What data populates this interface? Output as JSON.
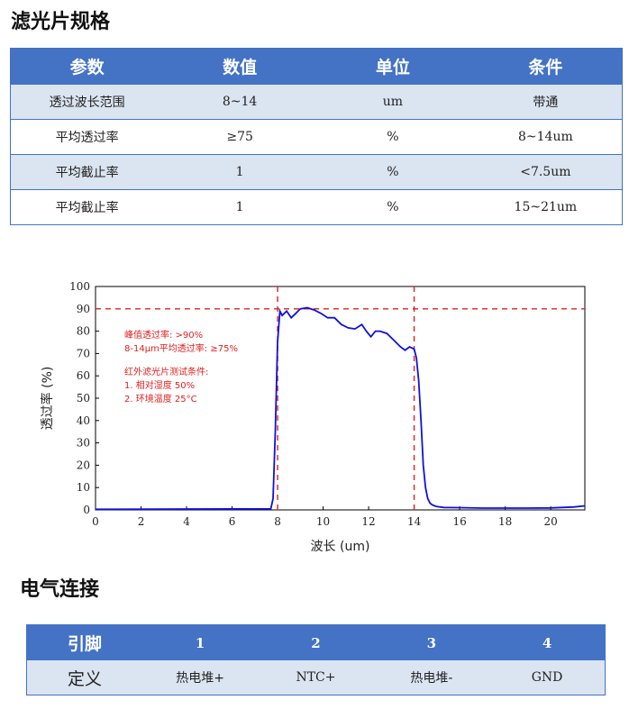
{
  "filter_title": "滤光片规格",
  "spec_table": {
    "headers": [
      "参数",
      "数值",
      "单位",
      "条件"
    ],
    "rows": [
      [
        "透过波长范围",
        "8~14",
        "um",
        "带通"
      ],
      [
        "平均透过率",
        "≥75",
        "%",
        "8~14um"
      ],
      [
        "平均截止率",
        "1",
        "%",
        "<7.5um"
      ],
      [
        "平均截止率",
        "1",
        "%",
        "15~21um"
      ]
    ]
  },
  "chart_data": {
    "type": "line",
    "title": "",
    "xlabel": "波长 (um)",
    "ylabel": "透过率 (%)",
    "xlim": [
      0,
      21.5
    ],
    "ylim": [
      0,
      100
    ],
    "x_ticks": [
      "0",
      "2",
      "4",
      "6",
      "8",
      "10",
      "12",
      "14",
      "16",
      "18",
      "20"
    ],
    "y_ticks": [
      "0",
      "10",
      "20",
      "30",
      "40",
      "50",
      "60",
      "70",
      "80",
      "90",
      "100"
    ],
    "reference_lines": {
      "horizontal": [
        90
      ],
      "vertical": [
        8,
        14
      ]
    },
    "annotations": [
      "峰值透过率: >90%",
      "8-14μm平均透过率: ≥75%",
      "红外滤光片测试条件:",
      "1. 相对湿度 50%",
      "2. 环境温度 25°C"
    ],
    "series": [
      {
        "color": "#1010e0",
        "x": [
          0,
          7.7,
          7.8,
          7.9,
          8.0,
          8.1,
          8.2,
          8.4,
          8.6,
          8.8,
          9.0,
          9.3,
          9.6,
          9.9,
          10.2,
          10.5,
          10.8,
          11.1,
          11.4,
          11.7,
          11.9,
          12.1,
          12.3,
          12.5,
          12.8,
          13.1,
          13.4,
          13.6,
          13.8,
          14.0,
          14.1,
          14.2,
          14.3,
          14.4,
          14.5,
          14.6,
          14.7,
          14.8,
          14.9,
          15.0,
          15.3,
          16.0,
          17.0,
          18.0,
          19.0,
          20.0,
          21.0,
          21.5
        ],
        "y": [
          0.3,
          0.5,
          5,
          35,
          75,
          89,
          87,
          89,
          86,
          88,
          90,
          90.5,
          89.5,
          88,
          86,
          86,
          83,
          81.5,
          81,
          83,
          80,
          77.5,
          80,
          80,
          79,
          76,
          73,
          71.5,
          73,
          72,
          68,
          58,
          40,
          20,
          10,
          5,
          3,
          2.2,
          1.8,
          1.5,
          1.1,
          1,
          0.8,
          0.8,
          0.8,
          0.9,
          1.3,
          1.8
        ]
      }
    ]
  },
  "electrical_title": "电气连接",
  "pin_table": {
    "header": [
      "引脚",
      "1",
      "2",
      "3",
      "4"
    ],
    "row": [
      "定义",
      "热电堆+",
      "NTC+",
      "热电堆-",
      "GND"
    ]
  },
  "colors": {
    "header_blue": "#4472c4",
    "row_tint": "#dbe4f1",
    "curve": "#1010e0",
    "annotation_red": "#e02020"
  }
}
